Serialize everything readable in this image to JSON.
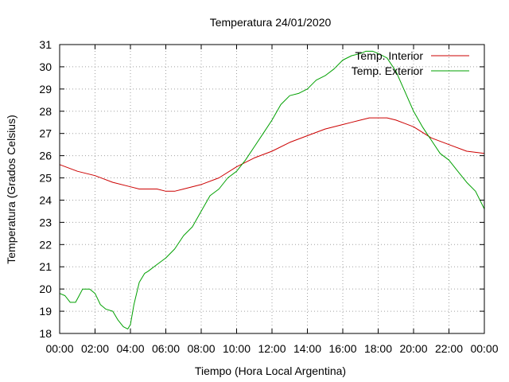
{
  "chart_data": {
    "type": "line",
    "title": "Temperatura 24/01/2020",
    "xlabel": "Tiempo (Hora Local Argentina)",
    "ylabel": "Temperatura (Grados Celsius)",
    "xlim": [
      0,
      24
    ],
    "ylim": [
      18,
      31
    ],
    "x_tick_labels": [
      "00:00",
      "02:00",
      "04:00",
      "06:00",
      "08:00",
      "10:00",
      "12:00",
      "14:00",
      "16:00",
      "18:00",
      "20:00",
      "22:00",
      "00:00"
    ],
    "y_tick_labels": [
      "18",
      "19",
      "20",
      "21",
      "22",
      "23",
      "24",
      "25",
      "26",
      "27",
      "28",
      "29",
      "30",
      "31"
    ],
    "grid": true,
    "legend_position": "top-right",
    "series": [
      {
        "name": "Temp. Interior",
        "color": "#cc0000",
        "x": [
          0,
          1,
          2,
          3,
          4,
          4.5,
          5,
          5.5,
          6,
          6.5,
          7,
          8,
          9,
          10,
          11,
          12,
          13,
          14,
          15,
          16,
          16.5,
          17,
          17.5,
          18,
          18.5,
          19,
          20,
          21,
          22,
          23,
          24
        ],
        "y": [
          25.6,
          25.3,
          25.1,
          24.8,
          24.6,
          24.5,
          24.5,
          24.5,
          24.4,
          24.4,
          24.5,
          24.7,
          25.0,
          25.5,
          25.9,
          26.2,
          26.6,
          26.9,
          27.2,
          27.4,
          27.5,
          27.6,
          27.7,
          27.7,
          27.7,
          27.6,
          27.3,
          26.8,
          26.5,
          26.2,
          26.1
        ]
      },
      {
        "name": "Temp. Exterior",
        "color": "#00a000",
        "x": [
          0,
          0.3,
          0.6,
          0.9,
          1.1,
          1.3,
          1.5,
          1.7,
          2.0,
          2.3,
          2.6,
          3.0,
          3.3,
          3.6,
          3.85,
          4.0,
          4.2,
          4.5,
          4.8,
          5.0,
          5.5,
          6.0,
          6.5,
          7.0,
          7.5,
          8.0,
          8.5,
          9.0,
          9.5,
          10.0,
          10.5,
          11.0,
          11.5,
          12.0,
          12.5,
          13.0,
          13.5,
          14.0,
          14.5,
          15.0,
          15.5,
          16.0,
          16.5,
          17.0,
          17.3,
          17.7,
          18.0,
          18.5,
          19.0,
          19.5,
          20.0,
          20.5,
          21.0,
          21.5,
          22.0,
          22.5,
          23.0,
          23.5,
          24.0
        ],
        "y": [
          19.8,
          19.7,
          19.4,
          19.4,
          19.7,
          20.0,
          20.0,
          20.0,
          19.8,
          19.3,
          19.1,
          19.0,
          18.6,
          18.3,
          18.2,
          18.4,
          19.3,
          20.3,
          20.7,
          20.8,
          21.1,
          21.4,
          21.8,
          22.4,
          22.8,
          23.5,
          24.2,
          24.5,
          25.0,
          25.3,
          25.8,
          26.4,
          27.0,
          27.6,
          28.3,
          28.7,
          28.8,
          29.0,
          29.4,
          29.6,
          29.9,
          30.3,
          30.5,
          30.6,
          30.7,
          30.7,
          30.6,
          30.4,
          29.8,
          28.9,
          28.0,
          27.3,
          26.7,
          26.1,
          25.8,
          25.3,
          24.8,
          24.4,
          23.6
        ]
      }
    ]
  }
}
